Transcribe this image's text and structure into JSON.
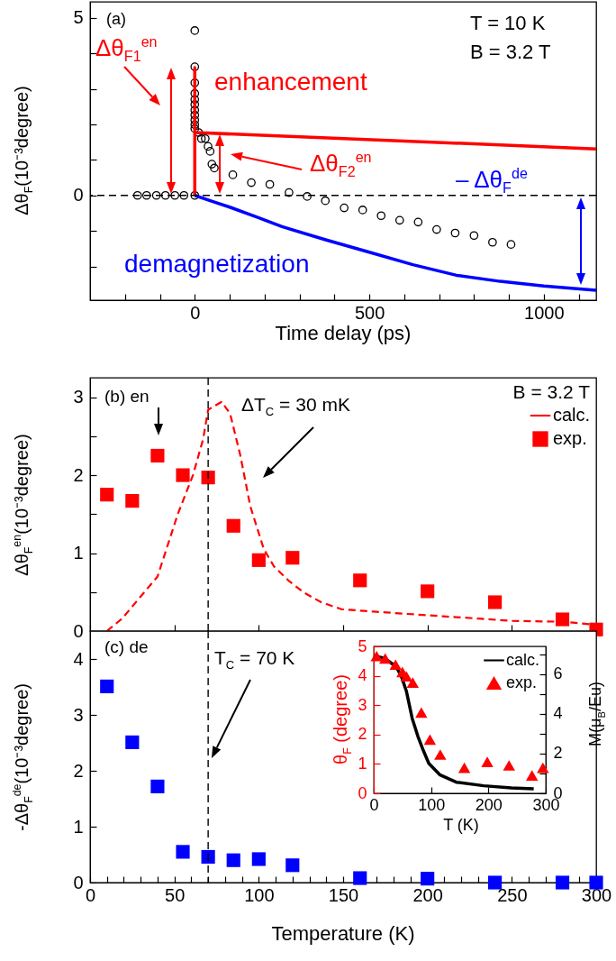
{
  "chart_data": [
    {
      "type": "scatter",
      "xlabel": "Time delay (ps)",
      "ylabel": "Δθ$_{F}$(10⁻³degree)",
      "xlim": [
        -300,
        1150
      ],
      "xticks": [
        {
          "value": -200,
          "label": null
        },
        {
          "value": -100,
          "label": null
        },
        0,
        {
          "value": 100,
          "label": null
        },
        {
          "value": 200,
          "label": null
        },
        {
          "value": 300,
          "label": null
        },
        {
          "value": 400,
          "label": null
        },
        500,
        {
          "value": 600,
          "label": null
        },
        {
          "value": 700,
          "label": null
        },
        {
          "value": 800,
          "label": null
        },
        {
          "value": 900,
          "label": null
        },
        1000,
        {
          "value": 1100,
          "label": null
        }
      ],
      "ylim": [
        -2.95,
        5.45
      ],
      "yticks": [
        {
          "value": -2,
          "label": null
        },
        {
          "value": -1,
          "label": null
        },
        0,
        {
          "value": 1,
          "label": null
        },
        {
          "value": 2,
          "label": null
        },
        {
          "value": 3,
          "label": null
        },
        {
          "value": 4,
          "label": null
        },
        5
      ],
      "series": [
        {
          "marker": "circle",
          "color": "#000000",
          "x": [
            -164,
            -138,
            -110,
            -84,
            -57,
            -31,
            0,
            0,
            0,
            0,
            0,
            0,
            0,
            0,
            0,
            0,
            0,
            0,
            11,
            19,
            30,
            38,
            44,
            49,
            56,
            109,
            162,
            215,
            270,
            322,
            374,
            428,
            481,
            534,
            587,
            640,
            693,
            746,
            800,
            853,
            906
          ],
          "values": [
            0,
            0,
            0,
            0,
            0,
            0,
            0,
            4.64,
            3.62,
            3.17,
            2.87,
            2.7,
            2.56,
            2.4,
            2.26,
            2.12,
            1.99,
            1.88,
            1.77,
            1.6,
            1.6,
            1.38,
            1.24,
            0.88,
            0.77,
            0.58,
            0.36,
            0.31,
            0.08,
            -0.03,
            -0.15,
            -0.35,
            -0.41,
            -0.57,
            -0.7,
            -0.75,
            -0.96,
            -1.06,
            -1.13,
            -1.32,
            -1.38
          ]
        },
        {
          "type": "line",
          "line_style": "solid",
          "color": "#ff0000",
          "x": [
            0,
            0,
            0,
            1150
          ],
          "values": [
            0,
            3.6,
            1.77,
            1.31
          ]
        },
        {
          "type": "line",
          "line_style": "solid",
          "color": "#0000ff",
          "x": [
            0,
            50,
            100,
            175,
            250,
            375,
            500,
            625,
            750,
            875,
            1000,
            1150
          ],
          "values": [
            0,
            -0.17,
            -0.33,
            -0.6,
            -0.88,
            -1.25,
            -1.6,
            -1.95,
            -2.25,
            -2.42,
            -2.55,
            -2.67
          ]
        }
      ],
      "ref_lines": [
        {
          "axis": "y",
          "value": 0,
          "color": "#000000",
          "line_style": "dashed"
        }
      ],
      "annotations": [
        "(a)",
        "T = 10 K",
        "B = 3.2 T",
        "Δθ$_{F1}$$^{en}$",
        "enhancement",
        "Δθ$_{F2}$$^{en}$",
        "– Δθ$_{F}$$^{de}$",
        "demagnetization"
      ]
    },
    {
      "type": "scatter",
      "ylabel": "Δθ$_{F}$$^{en}$(10⁻³degree)",
      "tick_labels": "y",
      "xlim": [
        0,
        300
      ],
      "xticks": [
        0,
        50,
        100,
        150,
        200,
        250,
        300
      ],
      "ylim": [
        0,
        3.25
      ],
      "yticks": [
        0,
        {
          "value": 0.5,
          "label": null
        },
        1,
        {
          "value": 1.5,
          "label": null
        },
        2,
        {
          "value": 2.5,
          "label": null
        },
        3
      ],
      "series": [
        {
          "name": "calc.",
          "type": "line",
          "line_style": "dashed",
          "color": "#ff0000",
          "x": [
            10,
            19,
            40,
            52,
            61,
            67,
            70,
            78,
            83,
            89,
            95,
            103,
            109,
            118,
            127,
            137,
            149,
            168,
            188,
            209,
            230,
            250,
            280,
            300
          ],
          "values": [
            0,
            0.16,
            0.7,
            1.5,
            2.0,
            2.46,
            2.84,
            2.94,
            2.79,
            2.26,
            1.6,
            1.05,
            0.83,
            0.64,
            0.49,
            0.37,
            0.28,
            0.25,
            0.22,
            0.19,
            0.16,
            0.13,
            0.12,
            0.08
          ]
        },
        {
          "name": "exp.",
          "marker": "square",
          "color": "#ff0000",
          "x": [
            10,
            25,
            40,
            55,
            70,
            85,
            100,
            120,
            160,
            200,
            240,
            280,
            300
          ],
          "values": [
            1.75,
            1.67,
            2.25,
            2.0,
            1.97,
            1.35,
            0.91,
            0.94,
            0.65,
            0.51,
            0.37,
            0.15,
            0.02
          ]
        }
      ],
      "legend": "top right",
      "legend_title": "B = 3.2 T",
      "ref_lines": [
        {
          "axis": "x",
          "value": 70,
          "color": "#000000",
          "line_style": "dashed"
        }
      ],
      "annotations": [
        "(b) en",
        "ΔT$_{C}$ = 30 mK"
      ]
    },
    {
      "type": "scatter",
      "xlabel": "Temperature (K)",
      "ylabel": "-Δθ$_{F}$$^{de}$(10⁻³degree)",
      "xlim": [
        0,
        300
      ],
      "xticks": [
        0,
        {
          "value": 10,
          "label": null
        },
        {
          "value": 20,
          "label": null
        },
        {
          "value": 30,
          "label": null
        },
        {
          "value": 40,
          "label": null
        },
        50,
        {
          "value": 60,
          "label": null
        },
        {
          "value": 70,
          "label": null
        },
        {
          "value": 80,
          "label": null
        },
        {
          "value": 90,
          "label": null
        },
        100,
        {
          "value": 110,
          "label": null
        },
        {
          "value": 120,
          "label": null
        },
        {
          "value": 130,
          "label": null
        },
        {
          "value": 140,
          "label": null
        },
        150,
        {
          "value": 160,
          "label": null
        },
        {
          "value": 170,
          "label": null
        },
        {
          "value": 180,
          "label": null
        },
        {
          "value": 190,
          "label": null
        },
        200,
        {
          "value": 210,
          "label": null
        },
        {
          "value": 220,
          "label": null
        },
        {
          "value": 230,
          "label": null
        },
        {
          "value": 240,
          "label": null
        },
        250,
        {
          "value": 260,
          "label": null
        },
        {
          "value": 270,
          "label": null
        },
        {
          "value": 280,
          "label": null
        },
        {
          "value": 290,
          "label": null
        },
        300
      ],
      "ylim": [
        0,
        4.5
      ],
      "yticks": [
        0,
        1,
        2,
        3,
        4
      ],
      "series": [
        {
          "marker": "square",
          "color": "#0000ff",
          "x": [
            10,
            25,
            40,
            55,
            70,
            85,
            100,
            120,
            160,
            200,
            240,
            280,
            300
          ],
          "values": [
            3.51,
            2.51,
            1.72,
            0.55,
            0.46,
            0.4,
            0.42,
            0.31,
            0.08,
            0.07,
            0,
            0,
            0
          ]
        }
      ],
      "ref_lines": [
        {
          "axis": "x",
          "value": 70,
          "color": "#000000",
          "line_style": "dashed"
        }
      ],
      "annotations": [
        "(c) de",
        "T$_{C}$ = 70 K"
      ]
    },
    {
      "type": "scatter",
      "xlabel": "T (K)",
      "ylabel": "θ$_{F}$ (degree)",
      "y2label": "M(μ$_{B}$/Eu)",
      "xlim": [
        0,
        300
      ],
      "xticks": [
        0,
        100,
        200,
        300
      ],
      "ylim": [
        0,
        5
      ],
      "yticks": [
        0,
        1,
        2,
        3,
        4,
        5
      ],
      "y2lim": [
        0,
        7.4
      ],
      "y2ticks": [
        0,
        {
          "value": 1,
          "label": null
        },
        2,
        {
          "value": 3,
          "label": null
        },
        4,
        {
          "value": 5,
          "label": null
        },
        6,
        {
          "value": 7,
          "label": null
        }
      ],
      "series": [
        {
          "name": "calc.",
          "type": "line",
          "line_style": "solid",
          "axis": "y2",
          "color": "#000000",
          "x": [
            0,
            19,
            39,
            48,
            57,
            67,
            77,
            87,
            96,
            115,
            144,
            192,
            240,
            279
          ],
          "values": [
            6.92,
            6.8,
            6.38,
            5.9,
            5.14,
            3.78,
            2.87,
            2.12,
            1.51,
            0.94,
            0.56,
            0.38,
            0.27,
            0.23
          ]
        },
        {
          "name": "exp.",
          "marker": "triangle",
          "color": "#ff0000",
          "x": [
            5,
            20,
            38,
            50,
            57,
            68,
            83,
            98,
            116,
            158,
            198,
            236,
            276,
            295
          ],
          "values": [
            4.67,
            4.59,
            4.38,
            4.13,
            3.98,
            3.77,
            2.75,
            1.83,
            1.32,
            0.87,
            1.07,
            0.95,
            0.61,
            0.87
          ]
        }
      ],
      "legend": "top right"
    }
  ]
}
